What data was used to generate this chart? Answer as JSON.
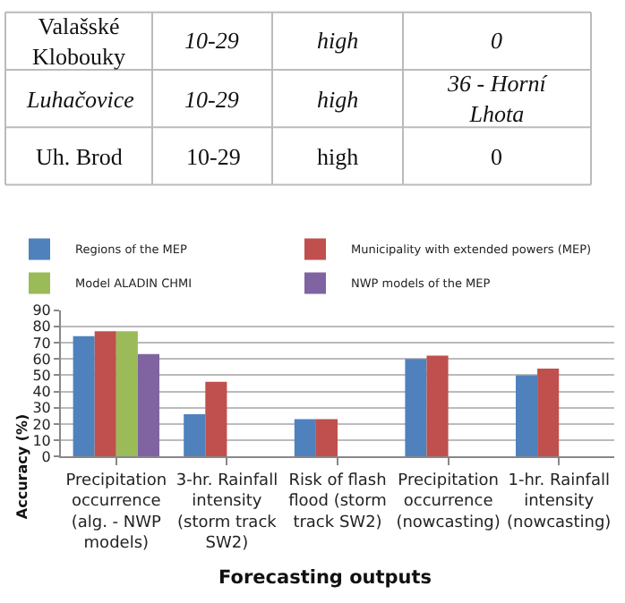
{
  "chart_data": [
    {
      "type": "other",
      "annotations": [
        "Valašské Klobouky",
        "10-29",
        "high",
        "0",
        "Luhačovice",
        "10-29",
        "high",
        "36 - Horní Lhota",
        "Uh. Brod",
        "10-29",
        "high",
        "0"
      ]
    },
    {
      "type": "bar",
      "xlabel": "Forecasting outputs",
      "ylabel": "Accuracy (%)",
      "categories": [
        "Precipitation occurrence (alg. - NWP models)",
        "3-hr. Rainfall intensity (storm track SW2)",
        "Risk of flash flood (storm track SW2)",
        "Precipitation occurrence (nowcasting)",
        "1-hr. Rainfall intensity (nowcasting)"
      ],
      "series": [
        {
          "name": "Regions of the MEP",
          "color": "#4f81bd",
          "values": [
            74,
            26,
            23,
            60,
            50
          ]
        },
        {
          "name": "Municipality with extended powers (MEP)",
          "color": "#c0504d",
          "values": [
            77,
            46,
            23,
            62,
            54
          ]
        },
        {
          "name": "Model ALADIN CHMI",
          "color": "#9bbb59",
          "values": [
            77,
            null,
            null,
            null,
            null
          ]
        },
        {
          "name": "NWP models of the MEP",
          "color": "#8064a2",
          "values": [
            63,
            null,
            null,
            null,
            null
          ]
        }
      ],
      "ylim": [
        0,
        90
      ],
      "yticks": [
        0,
        10,
        20,
        30,
        40,
        50,
        60,
        70,
        80,
        90
      ],
      "grid": "y",
      "legend": "top"
    }
  ]
}
